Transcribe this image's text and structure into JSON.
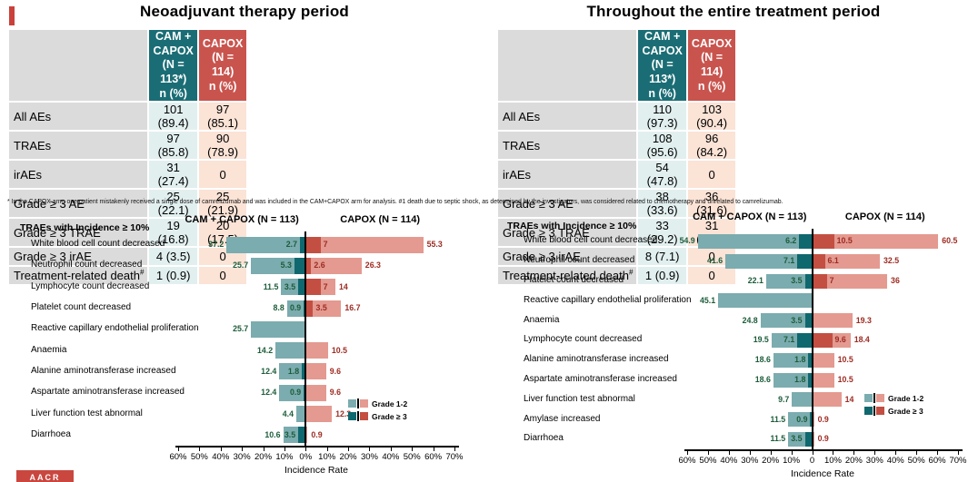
{
  "panels": [
    {
      "title": "Neoadjuvant therapy period"
    },
    {
      "title": "Throughout the entire treatment period"
    }
  ],
  "footnote": "* In the CAPOX arm, one patient mistakenly received a single dose of camrelizumab and was included in the CAM+CAPOX arm for analysis.  #1 death due to septic shock, as determined by the investigators, was considered related to chemotherapy and unrelated to camrelizumab.",
  "logo": {
    "text": "AACR"
  },
  "colors": {
    "teal_header": "#1b6d75",
    "red_header": "#c9544e",
    "teal_cell": "#e2efef",
    "pink_cell": "#fbe3d6",
    "gray_cell": "#dbdbdb",
    "bar_teal_light": "#7bacaf",
    "bar_teal_dark": "#0f686e",
    "bar_red_light": "#e49a90",
    "bar_red_dark": "#c34f42",
    "label_green": "#1c5c3a",
    "label_red": "#9d2b22"
  },
  "chart_data": [
    {
      "type": "table",
      "title": "Neoadjuvant therapy period",
      "columns": [
        {
          "title": "",
          "sub": ""
        },
        {
          "title": "CAM + CAPOX (N = 113*)",
          "sub": "n (%)"
        },
        {
          "title": "CAPOX (N = 114)",
          "sub": "n (%)"
        }
      ],
      "rows": [
        {
          "label": "All AEs",
          "cam": "101 (89.4)",
          "capox": "97 (85.1)"
        },
        {
          "label": "TRAEs",
          "cam": "97 (85.8)",
          "capox": "90 (78.9)"
        },
        {
          "label": "irAEs",
          "cam": "31 (27.4)",
          "capox": "0"
        },
        {
          "label": "Grade ≥ 3  AE",
          "cam": "25 (22.1)",
          "capox": "25 (21.9)"
        },
        {
          "label": "Grade ≥ 3  TRAE",
          "cam": "19 (16.8)",
          "capox": "20 (17.5)"
        },
        {
          "label": "Grade ≥ 3  irAE",
          "cam": "4 (3.5)",
          "capox": "0"
        },
        {
          "label": "Treatment-related death#",
          "cam": "1 (0.9)",
          "capox": "0"
        }
      ]
    },
    {
      "type": "table",
      "title": "Throughout the entire treatment period",
      "columns": [
        {
          "title": "",
          "sub": ""
        },
        {
          "title": "CAM + CAPOX (N = 113*)",
          "sub": "n (%)"
        },
        {
          "title": "CAPOX (N = 114)",
          "sub": "n (%)"
        }
      ],
      "rows": [
        {
          "label": "All AEs",
          "cam": "110 (97.3)",
          "capox": "103 (90.4)"
        },
        {
          "label": "TRAEs",
          "cam": "108 (95.6)",
          "capox": "96 (84.2)"
        },
        {
          "label": "irAEs",
          "cam": "54 (47.8)",
          "capox": "0"
        },
        {
          "label": "Grade ≥ 3  AE",
          "cam": "38 (33.6)",
          "capox": "36 (31.6)"
        },
        {
          "label": "Grade ≥ 3  TRAE",
          "cam": "33 (29.2)",
          "capox": "31 (27.2)"
        },
        {
          "label": "Grade ≥ 3  irAE",
          "cam": "8 (7.1)",
          "capox": "0"
        },
        {
          "label": "Treatment-related death#",
          "cam": "1 (0.9)",
          "capox": "0"
        }
      ]
    },
    {
      "type": "bar",
      "variant": "tornado-stacked",
      "title": "Neoadjuvant therapy period — TRAEs with Incidence ≥ 10%",
      "row_header": "TRAEs with Incidence ≥ 10%",
      "group_headers": [
        "CAM + CAPOX  (N = 113)",
        "CAPOX  (N = 114)"
      ],
      "legend": [
        "Grade 1-2",
        "Grade ≥ 3"
      ],
      "xlabel": "Incidence Rate",
      "value_semantics": "outer label = all-grade incidence %, dark segment = Grade ≥ 3 incidence %",
      "axis": {
        "left_max": 60,
        "right_max": 70,
        "step": 10,
        "unit": "%",
        "tick_labels": [
          "60%",
          "50%",
          "40%",
          "30%",
          "20%",
          "10%",
          "0%",
          "10%",
          "20%",
          "30%",
          "40%",
          "50%",
          "60%",
          "70%"
        ]
      },
      "rows": [
        {
          "label": "White blood cell count decreased",
          "cam": {
            "total": 37.2,
            "grade3": 2.7
          },
          "capox": {
            "total": 55.3,
            "grade3": 7
          }
        },
        {
          "label": "Neutrophil count decreased",
          "cam": {
            "total": 25.7,
            "grade3": 5.3
          },
          "capox": {
            "total": 26.3,
            "grade3": 2.6
          }
        },
        {
          "label": "Lymphocyte count decreased",
          "cam": {
            "total": 11.5,
            "grade3": 3.5
          },
          "capox": {
            "total": 14,
            "grade3": 7
          }
        },
        {
          "label": "Platelet count decreased",
          "cam": {
            "total": 8.8,
            "grade3": 0.9
          },
          "capox": {
            "total": 16.7,
            "grade3": 3.5
          }
        },
        {
          "label": "Reactive capillary endothelial proliferation",
          "cam": {
            "total": 25.7,
            "grade3": 0
          },
          "capox": {
            "total": 0,
            "grade3": 0
          }
        },
        {
          "label": "Anaemia",
          "cam": {
            "total": 14.2,
            "grade3": 0
          },
          "capox": {
            "total": 10.5,
            "grade3": 0
          }
        },
        {
          "label": "Alanine aminotransferase increased",
          "cam": {
            "total": 12.4,
            "grade3": 1.8
          },
          "capox": {
            "total": 9.6,
            "grade3": 0
          }
        },
        {
          "label": "Aspartate aminotransferase increased",
          "cam": {
            "total": 12.4,
            "grade3": 0.9
          },
          "capox": {
            "total": 9.6,
            "grade3": 0
          }
        },
        {
          "label": "Liver function test abnormal",
          "cam": {
            "total": 4.4,
            "grade3": 0
          },
          "capox": {
            "total": 12.3,
            "grade3": 0
          }
        },
        {
          "label": "Diarrhoea",
          "cam": {
            "total": 10.6,
            "grade3": 3.5
          },
          "capox": {
            "total": 0.9,
            "grade3": 0
          }
        }
      ]
    },
    {
      "type": "bar",
      "variant": "tornado-stacked",
      "title": "Throughout the entire treatment period — TRAEs with Incidence ≥ 10%",
      "row_header": "TRAEs with Incidence ≥ 10%",
      "group_headers": [
        "CAM + CAPOX  (N = 113)",
        "CAPOX  (N = 114)"
      ],
      "legend": [
        "Grade 1-2",
        "Grade ≥ 3"
      ],
      "xlabel": "Incidence Rate",
      "value_semantics": "outer label = all-grade incidence %, dark segment = Grade ≥ 3 incidence %",
      "axis": {
        "left_max": 60,
        "right_max": 70,
        "step": 10,
        "unit": "%",
        "tick_labels": [
          "60%",
          "50%",
          "40%",
          "30%",
          "20%",
          "10%",
          "0",
          "10%",
          "20%",
          "30%",
          "40%",
          "50%",
          "60%",
          "70%"
        ]
      },
      "rows": [
        {
          "label": "White blood cell count decreased",
          "cam": {
            "total": 54.9,
            "grade3": 6.2
          },
          "capox": {
            "total": 60.5,
            "grade3": 10.5
          }
        },
        {
          "label": "Neutrophil count decreased",
          "cam": {
            "total": 41.6,
            "grade3": 7.1
          },
          "capox": {
            "total": 32.5,
            "grade3": 6.1
          }
        },
        {
          "label": "Platelet count decreased",
          "cam": {
            "total": 22.1,
            "grade3": 3.5
          },
          "capox": {
            "total": 36,
            "grade3": 7
          }
        },
        {
          "label": "Reactive capillary endothelial proliferation",
          "cam": {
            "total": 45.1,
            "grade3": 0
          },
          "capox": {
            "total": 0,
            "grade3": 0
          }
        },
        {
          "label": "Anaemia",
          "cam": {
            "total": 24.8,
            "grade3": 3.5
          },
          "capox": {
            "total": 19.3,
            "grade3": 0
          }
        },
        {
          "label": "Lymphocyte count decreased",
          "cam": {
            "total": 19.5,
            "grade3": 7.1
          },
          "capox": {
            "total": 18.4,
            "grade3": 9.6
          }
        },
        {
          "label": "Alanine aminotransferase increased",
          "cam": {
            "total": 18.6,
            "grade3": 1.8
          },
          "capox": {
            "total": 10.5,
            "grade3": 0
          }
        },
        {
          "label": "Aspartate aminotransferase increased",
          "cam": {
            "total": 18.6,
            "grade3": 1.8
          },
          "capox": {
            "total": 10.5,
            "grade3": 0
          }
        },
        {
          "label": "Liver function test abnormal",
          "cam": {
            "total": 9.7,
            "grade3": 0
          },
          "capox": {
            "total": 14,
            "grade3": 0
          }
        },
        {
          "label": "Amylase increased",
          "cam": {
            "total": 11.5,
            "grade3": 0.9
          },
          "capox": {
            "total": 0.9,
            "grade3": 0
          }
        },
        {
          "label": "Diarrhoea",
          "cam": {
            "total": 11.5,
            "grade3": 3.5
          },
          "capox": {
            "total": 0.9,
            "grade3": 0
          }
        }
      ]
    }
  ]
}
